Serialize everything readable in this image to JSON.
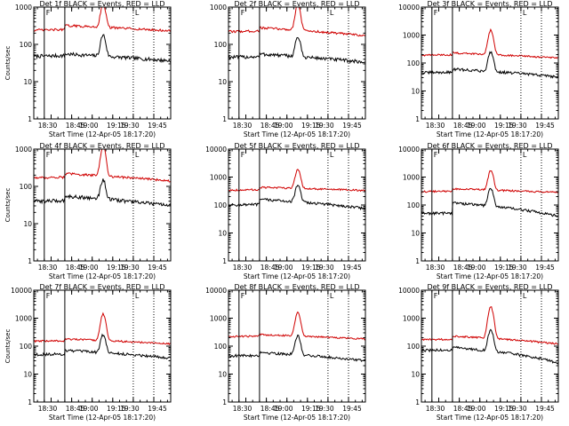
{
  "colors": {
    "events": "#000000",
    "lld": "#d00000",
    "axes": "#000000",
    "background": "#ffffff"
  },
  "chart_data": [
    {
      "type": "line",
      "title": "Det 1f BLACK = Events, RED = LLD",
      "xlabel": "Start Time (12-Apr-05 18:17:20)",
      "ylabel": "Counts/sec",
      "yscale": "log",
      "ylim": [
        1,
        1000
      ],
      "yticks": [
        "1",
        "10",
        "100",
        "1000"
      ],
      "xticks": [
        "18:30",
        "18:45",
        "19:00",
        "19:15",
        "19:30",
        "19:45"
      ],
      "xlim": [
        "18:17:20",
        "19:57:20"
      ],
      "annotations": [
        "F",
        "L"
      ],
      "solid_markers": [
        "18:25",
        "18:40"
      ],
      "dotted_markers": [
        "19:30",
        "19:45"
      ],
      "series": [
        {
          "color": "#000000",
          "base": 45,
          "base_end": 36,
          "pre_drop": 48,
          "post_rise": 55,
          "peak": 180
        },
        {
          "color": "#d00000",
          "base": 250,
          "base_end": 230,
          "pre_drop": 240,
          "post_rise": 320,
          "peak": 1200
        }
      ]
    },
    {
      "type": "line",
      "title": "Det 2f BLACK = Events, RED = LLD",
      "xlabel": "Start Time (12-Apr-05 18:17:20)",
      "ylabel": "",
      "yscale": "log",
      "ylim": [
        1,
        1000
      ],
      "yticks": [
        "1",
        "10",
        "100",
        "1000"
      ],
      "xticks": [
        "18:30",
        "18:45",
        "19:00",
        "19:15",
        "19:30",
        "19:45"
      ],
      "xlim": [
        "18:17:20",
        "19:57:20"
      ],
      "annotations": [
        "F",
        "L"
      ],
      "solid_markers": [
        "18:25",
        "18:40"
      ],
      "dotted_markers": [
        "19:30",
        "19:45"
      ],
      "series": [
        {
          "color": "#000000",
          "base": 40,
          "base_end": 33,
          "pre_drop": 45,
          "post_rise": 55,
          "peak": 160
        },
        {
          "color": "#d00000",
          "base": 210,
          "base_end": 170,
          "pre_drop": 220,
          "post_rise": 280,
          "peak": 1200
        }
      ]
    },
    {
      "type": "line",
      "title": "Det 3f BLACK = Events, RED = LLD",
      "xlabel": "Start Time (12-Apr-05 18:17:20)",
      "ylabel": "",
      "yscale": "log",
      "ylim": [
        1,
        10000
      ],
      "yticks": [
        "1",
        "10",
        "100",
        "1000",
        "10000"
      ],
      "xticks": [
        "18:30",
        "18:45",
        "19:00",
        "19:15",
        "19:30",
        "19:45"
      ],
      "xlim": [
        "18:17:20",
        "19:57:20"
      ],
      "annotations": [
        "F",
        "L"
      ],
      "solid_markers": [
        "18:25",
        "18:40"
      ],
      "dotted_markers": [
        "19:30",
        "19:45"
      ],
      "series": [
        {
          "color": "#000000",
          "base": 45,
          "base_end": 32,
          "pre_drop": 45,
          "post_rise": 60,
          "peak": 250
        },
        {
          "color": "#d00000",
          "base": 180,
          "base_end": 150,
          "pre_drop": 190,
          "post_rise": 230,
          "peak": 1500
        }
      ]
    },
    {
      "type": "line",
      "title": "Det 4f BLACK = Events, RED = LLD",
      "xlabel": "Start Time (12-Apr-05 18:17:20)",
      "ylabel": "Counts/sec",
      "yscale": "log",
      "ylim": [
        1,
        1000
      ],
      "yticks": [
        "1",
        "10",
        "100",
        "1000"
      ],
      "xticks": [
        "18:30",
        "18:45",
        "19:00",
        "19:15",
        "19:30",
        "19:45"
      ],
      "xlim": [
        "18:17:20",
        "19:57:20"
      ],
      "annotations": [
        "F",
        "L"
      ],
      "solid_markers": [
        "18:25",
        "18:40"
      ],
      "dotted_markers": [
        "19:30",
        "19:45"
      ],
      "series": [
        {
          "color": "#000000",
          "base": 35,
          "base_end": 30,
          "pre_drop": 40,
          "post_rise": 55,
          "peak": 150
        },
        {
          "color": "#d00000",
          "base": 160,
          "base_end": 140,
          "pre_drop": 170,
          "post_rise": 220,
          "peak": 1200
        }
      ]
    },
    {
      "type": "line",
      "title": "Det 5f BLACK = Events, RED = LLD",
      "xlabel": "Start Time (12-Apr-05 18:17:20)",
      "ylabel": "",
      "yscale": "log",
      "ylim": [
        1,
        10000
      ],
      "yticks": [
        "1",
        "10",
        "100",
        "1000",
        "10000"
      ],
      "xticks": [
        "18:30",
        "18:45",
        "19:00",
        "19:15",
        "19:30",
        "19:45"
      ],
      "xlim": [
        "18:17:20",
        "19:57:20"
      ],
      "annotations": [
        "F",
        "L"
      ],
      "solid_markers": [
        "18:25",
        "18:40"
      ],
      "dotted_markers": [
        "19:30",
        "19:45"
      ],
      "series": [
        {
          "color": "#000000",
          "base": 90,
          "base_end": 75,
          "pre_drop": 100,
          "post_rise": 160,
          "peak": 500
        },
        {
          "color": "#d00000",
          "base": 330,
          "base_end": 330,
          "pre_drop": 340,
          "post_rise": 430,
          "peak": 1900
        }
      ]
    },
    {
      "type": "line",
      "title": "Det 6f BLACK = Events, RED = LLD",
      "xlabel": "Start Time (12-Apr-05 18:17:20)",
      "ylabel": "",
      "yscale": "log",
      "ylim": [
        1,
        10000
      ],
      "yticks": [
        "1",
        "10",
        "100",
        "1000",
        "10000"
      ],
      "xticks": [
        "18:30",
        "18:45",
        "19:00",
        "19:15",
        "19:30",
        "19:45"
      ],
      "xlim": [
        "18:17:20",
        "19:57:20"
      ],
      "annotations": [
        "F",
        "L"
      ],
      "solid_markers": [
        "18:25",
        "18:40"
      ],
      "dotted_markers": [
        "19:30",
        "19:45"
      ],
      "series": [
        {
          "color": "#000000",
          "base": 50,
          "base_end": 40,
          "pre_drop": 50,
          "post_rise": 120,
          "peak": 400
        },
        {
          "color": "#d00000",
          "base": 300,
          "base_end": 280,
          "pre_drop": 300,
          "post_rise": 380,
          "peak": 1700
        }
      ]
    },
    {
      "type": "line",
      "title": "Det 7f BLACK = Events, RED = LLD",
      "xlabel": "Start Time (12-Apr-05 18:17:20)",
      "ylabel": "Counts/sec",
      "yscale": "log",
      "ylim": [
        1,
        10000
      ],
      "yticks": [
        "1",
        "10",
        "100",
        "1000",
        "10000"
      ],
      "xticks": [
        "18:30",
        "18:45",
        "19:00",
        "19:15",
        "19:30",
        "19:45"
      ],
      "xlim": [
        "18:17:20",
        "19:57:20"
      ],
      "annotations": [
        "F",
        "L"
      ],
      "solid_markers": [
        "18:25",
        "18:40"
      ],
      "dotted_markers": [
        "19:30",
        "19:45"
      ],
      "series": [
        {
          "color": "#000000",
          "base": 50,
          "base_end": 38,
          "pre_drop": 50,
          "post_rise": 70,
          "peak": 250
        },
        {
          "color": "#d00000",
          "base": 140,
          "base_end": 120,
          "pre_drop": 150,
          "post_rise": 180,
          "peak": 1400
        }
      ]
    },
    {
      "type": "line",
      "title": "Det 8f BLACK = Events, RED = LLD",
      "xlabel": "Start Time (12-Apr-05 18:17:20)",
      "ylabel": "",
      "yscale": "log",
      "ylim": [
        1,
        10000
      ],
      "yticks": [
        "1",
        "10",
        "100",
        "1000",
        "10000"
      ],
      "xticks": [
        "18:30",
        "18:45",
        "19:00",
        "19:15",
        "19:30",
        "19:45"
      ],
      "xlim": [
        "18:17:20",
        "19:57:20"
      ],
      "annotations": [
        "F",
        "L"
      ],
      "solid_markers": [
        "18:25",
        "18:40"
      ],
      "dotted_markers": [
        "19:30",
        "19:45"
      ],
      "series": [
        {
          "color": "#000000",
          "base": 45,
          "base_end": 30,
          "pre_drop": 45,
          "post_rise": 60,
          "peak": 230
        },
        {
          "color": "#d00000",
          "base": 210,
          "base_end": 180,
          "pre_drop": 220,
          "post_rise": 260,
          "peak": 1600
        }
      ]
    },
    {
      "type": "line",
      "title": "Det 9f BLACK = Events, RED = LLD",
      "xlabel": "Start Time (12-Apr-05 18:17:20)",
      "ylabel": "",
      "yscale": "log",
      "ylim": [
        1,
        10000
      ],
      "yticks": [
        "1",
        "10",
        "100",
        "1000",
        "10000"
      ],
      "xticks": [
        "18:30",
        "18:45",
        "19:00",
        "19:15",
        "19:30",
        "19:45"
      ],
      "xlim": [
        "18:17:20",
        "19:57:20"
      ],
      "annotations": [
        "F",
        "L"
      ],
      "solid_markers": [
        "18:25",
        "18:40"
      ],
      "dotted_markers": [
        "19:30",
        "19:45"
      ],
      "series": [
        {
          "color": "#000000",
          "base": 65,
          "base_end": 25,
          "pre_drop": 70,
          "post_rise": 90,
          "peak": 380
        },
        {
          "color": "#d00000",
          "base": 160,
          "base_end": 120,
          "pre_drop": 170,
          "post_rise": 230,
          "peak": 2500
        }
      ]
    }
  ]
}
